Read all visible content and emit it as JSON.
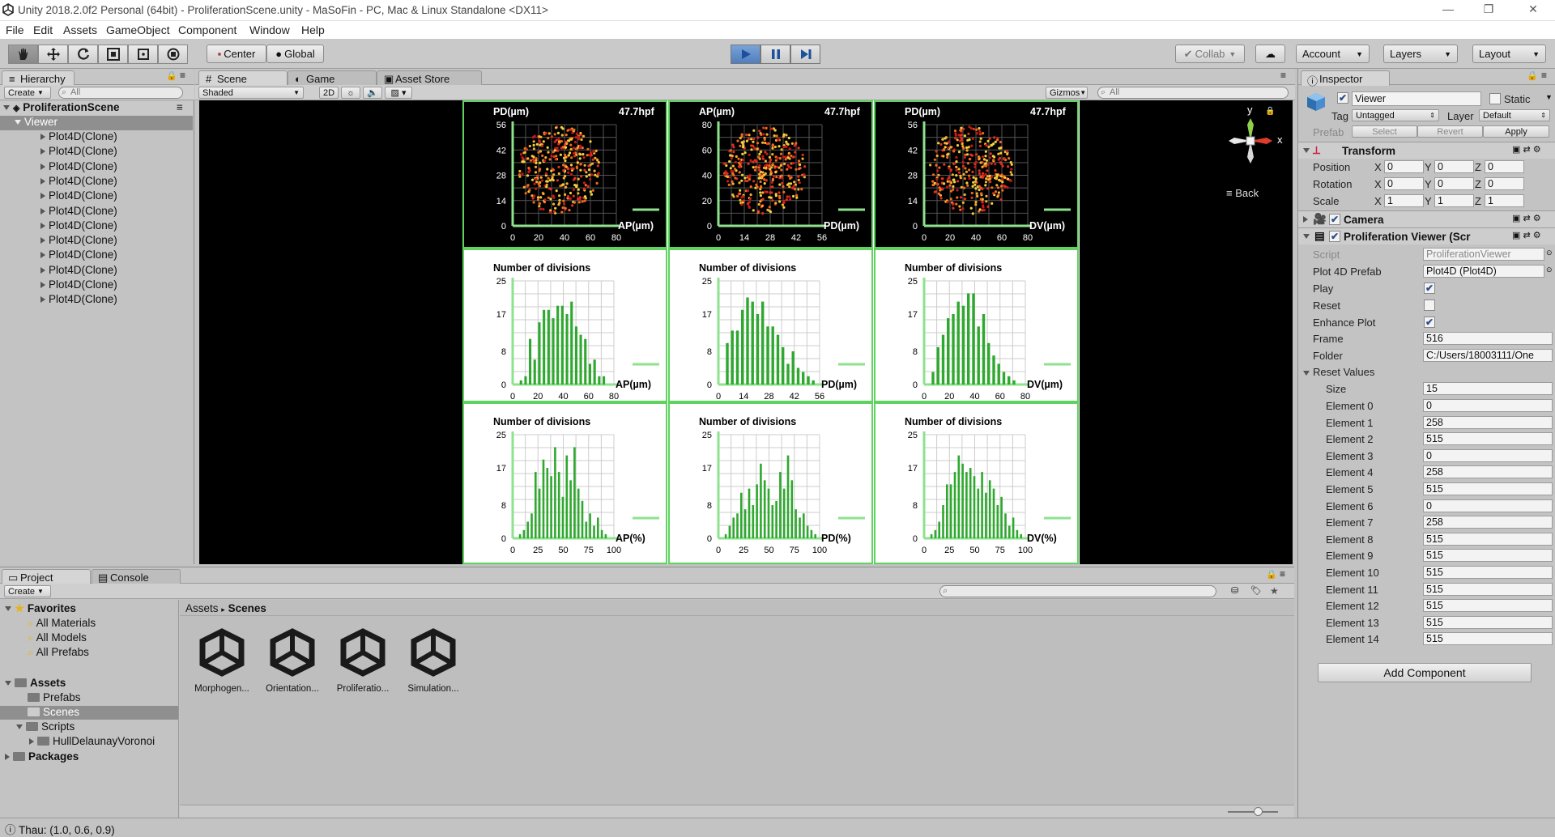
{
  "window": {
    "title": "Unity 2018.2.0f2 Personal (64bit) - ProliferationScene.unity - MaSoFin - PC, Mac & Linux Standalone <DX11>"
  },
  "menu": [
    "File",
    "Edit",
    "Assets",
    "GameObject",
    "Component",
    "Window",
    "Help"
  ],
  "toolbar": {
    "center": "Center",
    "global": "Global",
    "collab": "Collab",
    "account": "Account",
    "layers": "Layers",
    "layout": "Layout"
  },
  "hierarchy": {
    "tab": "Hierarchy",
    "create": "Create",
    "search": "All",
    "scene": "ProliferationScene",
    "selected": "Viewer",
    "items": [
      "Plot4D(Clone)",
      "Plot4D(Clone)",
      "Plot4D(Clone)",
      "Plot4D(Clone)",
      "Plot4D(Clone)",
      "Plot4D(Clone)",
      "Plot4D(Clone)",
      "Plot4D(Clone)",
      "Plot4D(Clone)",
      "Plot4D(Clone)",
      "Plot4D(Clone)",
      "Plot4D(Clone)"
    ]
  },
  "scene_view": {
    "tabs": [
      "Scene",
      "Game",
      "Asset Store"
    ],
    "shading": "Shaded",
    "mode2d": "2D",
    "gizmos": "Gizmos",
    "search": "All",
    "back": "Back",
    "axis_y": "y",
    "axis_x": "x"
  },
  "chart_data": [
    {
      "type": "scatter",
      "title": "PD(µm)",
      "corner": "47.7hpf",
      "xlabel": "AP(µm)",
      "xticks": [
        "0",
        "20",
        "40",
        "60",
        "80"
      ],
      "yticks": [
        "56",
        "42",
        "28",
        "14",
        "0"
      ],
      "seed": 1
    },
    {
      "type": "scatter",
      "title": "AP(µm)",
      "corner": "47.7hpf",
      "xlabel": "PD(µm)",
      "xticks": [
        "0",
        "14",
        "28",
        "42",
        "56"
      ],
      "yticks": [
        "80",
        "60",
        "40",
        "20",
        "0"
      ],
      "seed": 2
    },
    {
      "type": "scatter",
      "title": "PD(µm)",
      "corner": "47.7hpf",
      "xlabel": "DV(µm)",
      "xticks": [
        "0",
        "20",
        "40",
        "60",
        "80"
      ],
      "yticks": [
        "56",
        "42",
        "28",
        "14",
        "0"
      ],
      "seed": 3
    },
    {
      "type": "bar",
      "title": "Number of divisions",
      "xlabel": "AP(µm)",
      "xticks": [
        "0",
        "20",
        "40",
        "60",
        "80"
      ],
      "yticks": [
        "25",
        "17",
        "8",
        "0"
      ],
      "ylim": [
        0,
        25
      ],
      "values": [
        0,
        1,
        2,
        11,
        6,
        15,
        18,
        18,
        16,
        19,
        19,
        17,
        20,
        14,
        12,
        11,
        5,
        6,
        2,
        2,
        0,
        0
      ]
    },
    {
      "type": "bar",
      "title": "Number of divisions",
      "xlabel": "PD(µm)",
      "xticks": [
        "0",
        "14",
        "28",
        "42",
        "56"
      ],
      "yticks": [
        "25",
        "17",
        "8",
        "0"
      ],
      "ylim": [
        0,
        25
      ],
      "values": [
        0,
        10,
        13,
        13,
        18,
        21,
        20,
        17,
        20,
        14,
        14,
        12,
        9,
        5,
        8,
        4,
        3,
        2,
        1,
        0
      ]
    },
    {
      "type": "bar",
      "title": "Number of divisions",
      "xlabel": "DV(µm)",
      "xticks": [
        "0",
        "20",
        "40",
        "60",
        "80"
      ],
      "yticks": [
        "25",
        "17",
        "8",
        "0"
      ],
      "ylim": [
        0,
        25
      ],
      "values": [
        0,
        3,
        9,
        12,
        16,
        17,
        20,
        19,
        22,
        22,
        14,
        17,
        10,
        7,
        5,
        3,
        2,
        1,
        0,
        0
      ]
    },
    {
      "type": "bar",
      "title": "Number of divisions",
      "xlabel": "AP(%)",
      "xticks": [
        "0",
        "25",
        "50",
        "75",
        "100"
      ],
      "yticks": [
        "25",
        "17",
        "8",
        "0"
      ],
      "ylim": [
        0,
        25
      ],
      "values": [
        0,
        1,
        2,
        4,
        6,
        16,
        12,
        19,
        17,
        15,
        22,
        16,
        10,
        20,
        14,
        22,
        12,
        9,
        4,
        6,
        3,
        5,
        2,
        1,
        0,
        0
      ]
    },
    {
      "type": "bar",
      "title": "Number of divisions",
      "xlabel": "PD(%)",
      "xticks": [
        "0",
        "25",
        "50",
        "75",
        "100"
      ],
      "yticks": [
        "25",
        "17",
        "8",
        "0"
      ],
      "ylim": [
        0,
        25
      ],
      "values": [
        0,
        1,
        3,
        5,
        6,
        11,
        7,
        12,
        8,
        13,
        18,
        14,
        12,
        8,
        9,
        16,
        12,
        20,
        14,
        7,
        5,
        6,
        3,
        2,
        1,
        0
      ]
    },
    {
      "type": "bar",
      "title": "Number of divisions",
      "xlabel": "DV(%)",
      "xticks": [
        "0",
        "25",
        "50",
        "75",
        "100"
      ],
      "yticks": [
        "25",
        "17",
        "8",
        "0"
      ],
      "ylim": [
        0,
        25
      ],
      "values": [
        0,
        1,
        2,
        4,
        8,
        13,
        13,
        16,
        20,
        18,
        16,
        17,
        15,
        12,
        16,
        11,
        14,
        12,
        8,
        10,
        6,
        3,
        5,
        2,
        1,
        0
      ]
    }
  ],
  "inspector": {
    "tab": "Inspector",
    "object_name": "Viewer",
    "static": "Static",
    "tag_label": "Tag",
    "tag": "Untagged",
    "layer_label": "Layer",
    "layer": "Default",
    "prefab": "Prefab",
    "select": "Select",
    "revert": "Revert",
    "apply": "Apply",
    "transform": "Transform",
    "position": {
      "label": "Position",
      "x": "0",
      "y": "0",
      "z": "0"
    },
    "rotation": {
      "label": "Rotation",
      "x": "0",
      "y": "0",
      "z": "0"
    },
    "scale": {
      "label": "Scale",
      "x": "1",
      "y": "1",
      "z": "1"
    },
    "camera": "Camera",
    "component": "Proliferation Viewer (Scr",
    "script_label": "Script",
    "script": "ProliferationViewer",
    "prefab4d_label": "Plot 4D Prefab",
    "prefab4d": "Plot4D (Plot4D)",
    "play_label": "Play",
    "play": true,
    "reset_label": "Reset",
    "reset": false,
    "enhance_label": "Enhance Plot",
    "enhance": true,
    "frame_label": "Frame",
    "frame": "516",
    "folder_label": "Folder",
    "folder": "C:/Users/18003111/One",
    "reset_values": "Reset Values",
    "size_label": "Size",
    "size": "15",
    "elements": [
      {
        "label": "Element 0",
        "value": "0"
      },
      {
        "label": "Element 1",
        "value": "258"
      },
      {
        "label": "Element 2",
        "value": "515"
      },
      {
        "label": "Element 3",
        "value": "0"
      },
      {
        "label": "Element 4",
        "value": "258"
      },
      {
        "label": "Element 5",
        "value": "515"
      },
      {
        "label": "Element 6",
        "value": "0"
      },
      {
        "label": "Element 7",
        "value": "258"
      },
      {
        "label": "Element 8",
        "value": "515"
      },
      {
        "label": "Element 9",
        "value": "515"
      },
      {
        "label": "Element 10",
        "value": "515"
      },
      {
        "label": "Element 11",
        "value": "515"
      },
      {
        "label": "Element 12",
        "value": "515"
      },
      {
        "label": "Element 13",
        "value": "515"
      },
      {
        "label": "Element 14",
        "value": "515"
      }
    ],
    "add_component": "Add Component"
  },
  "project": {
    "tabs": [
      "Project",
      "Console"
    ],
    "create": "Create",
    "favorites": "Favorites",
    "fav_items": [
      "All Materials",
      "All Models",
      "All Prefabs"
    ],
    "assets": "Assets",
    "asset_folders": [
      "Prefabs",
      "Scenes",
      "Scripts"
    ],
    "sub_folder": "HullDelaunayVoronoi",
    "packages": "Packages",
    "breadcrumb": [
      "Assets",
      "Scenes"
    ],
    "files": [
      "Morphogen...",
      "Orientation...",
      "Proliferatio...",
      "Simulation..."
    ]
  },
  "status": {
    "text": "Thau: (1.0, 0.6, 0.9)"
  }
}
